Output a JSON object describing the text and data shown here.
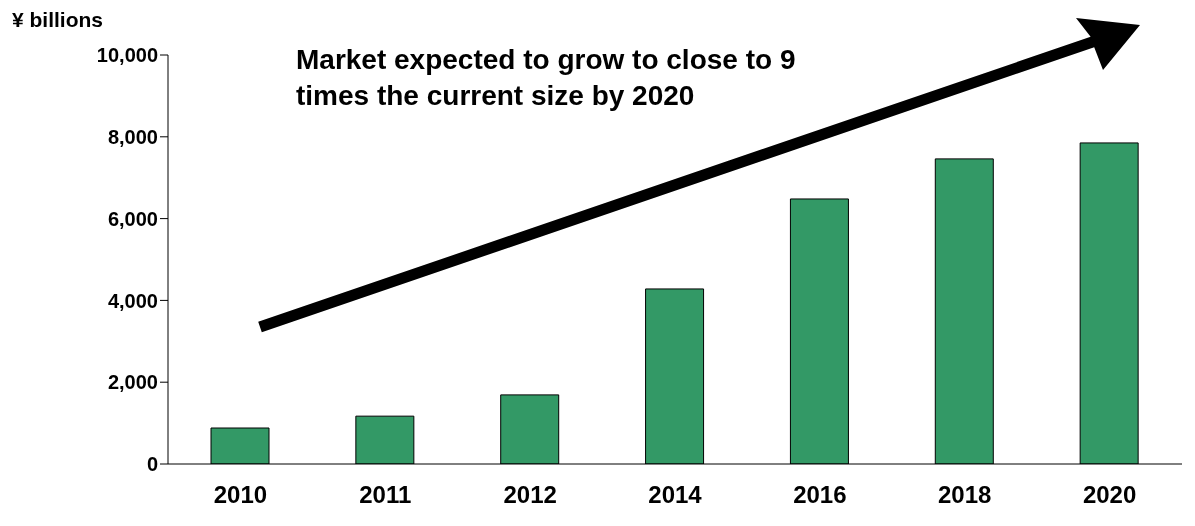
{
  "chart_data": {
    "type": "bar",
    "ylabel": "¥ billions",
    "annotations": [
      "Market expected to grow to close to 9 times the current size by 2020"
    ],
    "categories": [
      "2010",
      "2011",
      "2012",
      "2014",
      "2016",
      "2018",
      "2020"
    ],
    "values": [
      880,
      1170,
      1690,
      4280,
      6480,
      7460,
      7850
    ],
    "color": "#339966",
    "ylim": [
      0,
      10000
    ],
    "yticks": [
      0,
      {
        "value": 2000,
        "label": "2,000"
      },
      {
        "value": 4000,
        "label": "4,000"
      },
      {
        "value": 6000,
        "label": "6,000"
      },
      {
        "value": 8000,
        "label": "8,000"
      },
      {
        "value": 10000,
        "label": "10,000"
      }
    ],
    "grid": false,
    "legend": false
  }
}
